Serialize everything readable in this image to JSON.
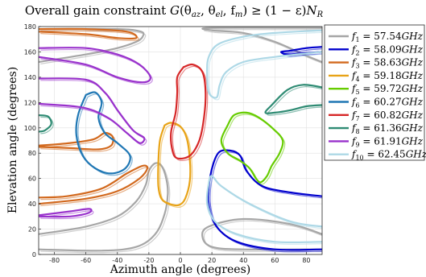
{
  "chart_data": {
    "type": "line",
    "title": "Overall gain constraint G(θaz,θel,fm) ≥ (1 − ε)NR",
    "title_parts": {
      "text": "Overall gain constraint ",
      "fn": "G",
      "args": "(θ",
      "az": "az",
      "comma1": ", θ",
      "el": "el",
      "comma2": ", f",
      "m": "m",
      "rhs": ") ≥ (1 − ε)",
      "n": "N",
      "r": "R"
    },
    "xlabel": "Azimuth angle (degrees)",
    "ylabel": "Elevation angle (degrees)",
    "xlim": [
      -90,
      90
    ],
    "ylim": [
      0,
      180
    ],
    "xticks": [
      -80,
      -60,
      -40,
      -20,
      0,
      20,
      40,
      60,
      80
    ],
    "yticks": [
      0,
      20,
      40,
      60,
      80,
      100,
      120,
      140,
      160,
      180
    ],
    "grid": true,
    "legend_position": "outside-right",
    "series": [
      {
        "name": "f1 = 57.54GHz",
        "label_sub": "1",
        "label_val": "57.54",
        "color": "#a6a6a6",
        "contours": [
          [
            [
              -90,
              152
            ],
            [
              -60,
              158
            ],
            [
              -40,
              163
            ],
            [
              -28,
              168
            ],
            [
              -24,
              172
            ],
            [
              -25,
              176
            ],
            [
              -40,
              178
            ],
            [
              -90,
              178
            ]
          ],
          [
            [
              -90,
              16
            ],
            [
              -60,
              22
            ],
            [
              -40,
              30
            ],
            [
              -28,
              42
            ],
            [
              -22,
              55
            ],
            [
              -20,
              66
            ],
            [
              -16,
              72
            ],
            [
              -12,
              70
            ],
            [
              -9,
              60
            ],
            [
              -8,
              48
            ],
            [
              -10,
              32
            ],
            [
              -16,
              16
            ],
            [
              -28,
              6
            ],
            [
              -50,
              3
            ],
            [
              -90,
              4
            ]
          ],
          [
            [
              90,
              152
            ],
            [
              80,
              157
            ],
            [
              60,
              168
            ],
            [
              40,
              175
            ],
            [
              20,
              177
            ],
            [
              20,
              179
            ],
            [
              90,
              179
            ]
          ],
          [
            [
              90,
              16
            ],
            [
              70,
              24
            ],
            [
              40,
              28
            ],
            [
              18,
              22
            ],
            [
              14,
              14
            ],
            [
              20,
              6
            ],
            [
              40,
              4
            ],
            [
              90,
              4
            ]
          ]
        ]
      },
      {
        "name": "f2 = 58.09GHz",
        "label_sub": "2",
        "label_val": "58.09",
        "color": "#0000cd",
        "contours": [
          [
            [
              90,
              164
            ],
            [
              80,
              163
            ],
            [
              70,
              161
            ],
            [
              64,
              160
            ],
            [
              68,
              158
            ],
            [
              78,
              159
            ],
            [
              90,
              160
            ]
          ],
          [
            [
              90,
              46
            ],
            [
              70,
              49
            ],
            [
              52,
              54
            ],
            [
              42,
              66
            ],
            [
              38,
              78
            ],
            [
              32,
              82
            ],
            [
              24,
              80
            ],
            [
              19,
              62
            ],
            [
              18,
              40
            ],
            [
              23,
              22
            ],
            [
              36,
              10
            ],
            [
              60,
              4
            ],
            [
              90,
              4
            ]
          ]
        ]
      },
      {
        "name": "f3 = 58.63GHz",
        "label_sub": "3",
        "label_val": "58.63",
        "color": "#d2691e",
        "contours": [
          [
            [
              -90,
              86
            ],
            [
              -70,
              88
            ],
            [
              -55,
              91
            ],
            [
              -48,
              96
            ],
            [
              -43,
              93
            ],
            [
              -44,
              86
            ],
            [
              -52,
              83
            ],
            [
              -70,
              84
            ],
            [
              -90,
              85
            ]
          ],
          [
            [
              -90,
              40
            ],
            [
              -60,
              44
            ],
            [
              -40,
              50
            ],
            [
              -26,
              60
            ],
            [
              -21,
              68
            ],
            [
              -24,
              70
            ],
            [
              -34,
              64
            ],
            [
              -50,
              52
            ],
            [
              -72,
              46
            ],
            [
              -90,
              45
            ]
          ],
          [
            [
              -90,
              176
            ],
            [
              -60,
              174
            ],
            [
              -40,
              171
            ],
            [
              -28,
              171
            ],
            [
              -34,
              176
            ],
            [
              -60,
              178
            ],
            [
              -90,
              178
            ]
          ]
        ]
      },
      {
        "name": "f4 = 59.18GHz",
        "label_sub": "4",
        "label_val": "59.18",
        "color": "#e8a317",
        "contours": [
          [
            [
              -10,
              102
            ],
            [
              -6,
              104
            ],
            [
              0,
              101
            ],
            [
              4,
              92
            ],
            [
              6,
              75
            ],
            [
              6,
              58
            ],
            [
              3,
              44
            ],
            [
              -1,
              39
            ],
            [
              -7,
              40
            ],
            [
              -12,
              44
            ],
            [
              -14,
              54
            ],
            [
              -14,
              72
            ],
            [
              -13,
              90
            ],
            [
              -10,
              102
            ]
          ]
        ]
      },
      {
        "name": "f5 = 59.72GHz",
        "label_sub": "5",
        "label_val": "59.72",
        "color": "#66cc00",
        "contours": [
          [
            [
              30,
              102
            ],
            [
              34,
              110
            ],
            [
              42,
              112
            ],
            [
              50,
              108
            ],
            [
              60,
              98
            ],
            [
              65,
              90
            ],
            [
              63,
              80
            ],
            [
              58,
              70
            ],
            [
              55,
              62
            ],
            [
              51,
              57
            ],
            [
              48,
              60
            ],
            [
              44,
              68
            ],
            [
              38,
              74
            ],
            [
              30,
              80
            ],
            [
              26,
              90
            ],
            [
              30,
              102
            ]
          ]
        ]
      },
      {
        "name": "f6 = 60.27GHz",
        "label_sub": "6",
        "label_val": "60.27",
        "color": "#1f77b4",
        "contours": [
          [
            [
              -60,
              126
            ],
            [
              -54,
              128
            ],
            [
              -50,
              120
            ],
            [
              -52,
              108
            ],
            [
              -48,
              96
            ],
            [
              -40,
              88
            ],
            [
              -32,
              78
            ],
            [
              -35,
              68
            ],
            [
              -44,
              64
            ],
            [
              -54,
              68
            ],
            [
              -62,
              78
            ],
            [
              -66,
              94
            ],
            [
              -65,
              110
            ],
            [
              -60,
              126
            ]
          ]
        ]
      },
      {
        "name": "f7 = 60.82GHz",
        "label_sub": "7",
        "label_val": "60.82",
        "color": "#d62728",
        "contours": [
          [
            [
              2,
              148
            ],
            [
              8,
              150
            ],
            [
              14,
              144
            ],
            [
              16,
              128
            ],
            [
              15,
              108
            ],
            [
              12,
              90
            ],
            [
              6,
              78
            ],
            [
              -2,
              76
            ],
            [
              -5,
              82
            ],
            [
              -6,
              96
            ],
            [
              -3,
              112
            ],
            [
              -2,
              128
            ],
            [
              -2,
              140
            ],
            [
              2,
              148
            ]
          ]
        ]
      },
      {
        "name": "f8 = 61.36GHz",
        "label_sub": "8",
        "label_val": "61.36",
        "color": "#2e8b73",
        "contours": [
          [
            [
              90,
              132
            ],
            [
              78,
              134
            ],
            [
              68,
              130
            ],
            [
              58,
              118
            ],
            [
              54,
              112
            ],
            [
              60,
              112
            ],
            [
              70,
              114
            ],
            [
              80,
              117
            ],
            [
              90,
              118
            ]
          ],
          [
            [
              -90,
              110
            ],
            [
              -84,
              109
            ],
            [
              -82,
              103
            ],
            [
              -86,
              98
            ],
            [
              -90,
              97
            ]
          ]
        ]
      },
      {
        "name": "f9 = 61.91GHz",
        "label_sub": "9",
        "label_val": "61.91",
        "color": "#9932cc",
        "contours": [
          [
            [
              -90,
              163
            ],
            [
              -60,
              163
            ],
            [
              -40,
              158
            ],
            [
              -26,
              150
            ],
            [
              -19,
              140
            ],
            [
              -24,
              136
            ],
            [
              -40,
              140
            ],
            [
              -60,
              150
            ],
            [
              -90,
              156
            ]
          ],
          [
            [
              -90,
              139
            ],
            [
              -60,
              138
            ],
            [
              -48,
              128
            ],
            [
              -40,
              114
            ],
            [
              -30,
              98
            ],
            [
              -23,
              92
            ],
            [
              -26,
              88
            ],
            [
              -34,
              96
            ],
            [
              -46,
              108
            ],
            [
              -62,
              116
            ],
            [
              -90,
              119
            ]
          ],
          [
            [
              -90,
              31
            ],
            [
              -70,
              34
            ],
            [
              -58,
              36
            ],
            [
              -58,
              33
            ],
            [
              -70,
              30
            ],
            [
              -90,
              30
            ]
          ]
        ]
      },
      {
        "name": "f10 = 62.45GHz",
        "label_sub": "10",
        "label_val": "62.45",
        "color": "#add8e6",
        "contours": [
          [
            [
              90,
              177
            ],
            [
              60,
              175
            ],
            [
              40,
              172
            ],
            [
              24,
              166
            ],
            [
              18,
              156
            ],
            [
              17,
              144
            ],
            [
              18,
              128
            ],
            [
              23,
              124
            ],
            [
              25,
              134
            ],
            [
              29,
              144
            ],
            [
              40,
              152
            ],
            [
              60,
              156
            ],
            [
              90,
              160
            ]
          ],
          [
            [
              90,
              22
            ],
            [
              70,
              26
            ],
            [
              44,
              40
            ],
            [
              26,
              54
            ],
            [
              20,
              62
            ],
            [
              18,
              56
            ],
            [
              17,
              40
            ],
            [
              22,
              26
            ],
            [
              36,
              16
            ],
            [
              60,
              10
            ],
            [
              90,
              10
            ]
          ]
        ]
      }
    ]
  }
}
